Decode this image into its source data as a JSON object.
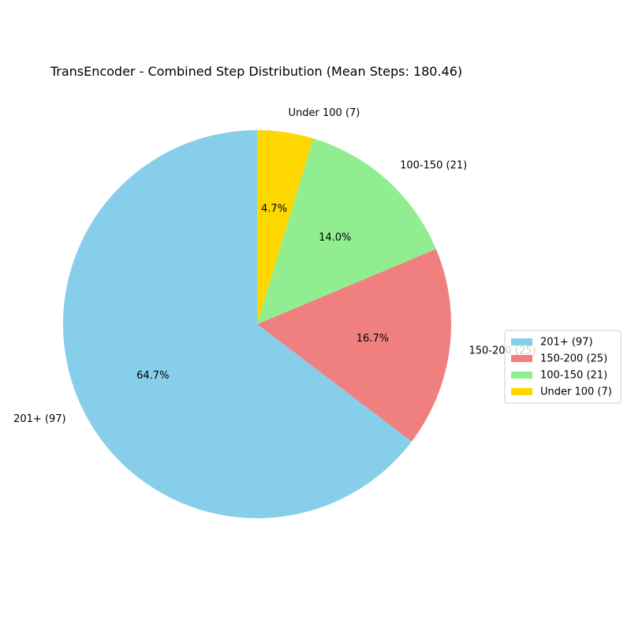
{
  "chart_data": {
    "type": "pie",
    "title": "TransEncoder - Combined Step Distribution (Mean Steps: 180.46)",
    "start_angle_deg": 90,
    "direction": "counterclockwise",
    "legend_position": "right",
    "slices": [
      {
        "label": "201+ (97)",
        "value": 97,
        "percent_label": "64.7%",
        "color": "#87CEEB"
      },
      {
        "label": "150-200 (25)",
        "value": 25,
        "percent_label": "16.7%",
        "color": "#F08080"
      },
      {
        "label": "100-150 (21)",
        "value": 21,
        "percent_label": "14.0%",
        "color": "#90EE90"
      },
      {
        "label": "Under 100 (7)",
        "value": 7,
        "percent_label": "4.7%",
        "color": "#FFD700"
      }
    ]
  }
}
